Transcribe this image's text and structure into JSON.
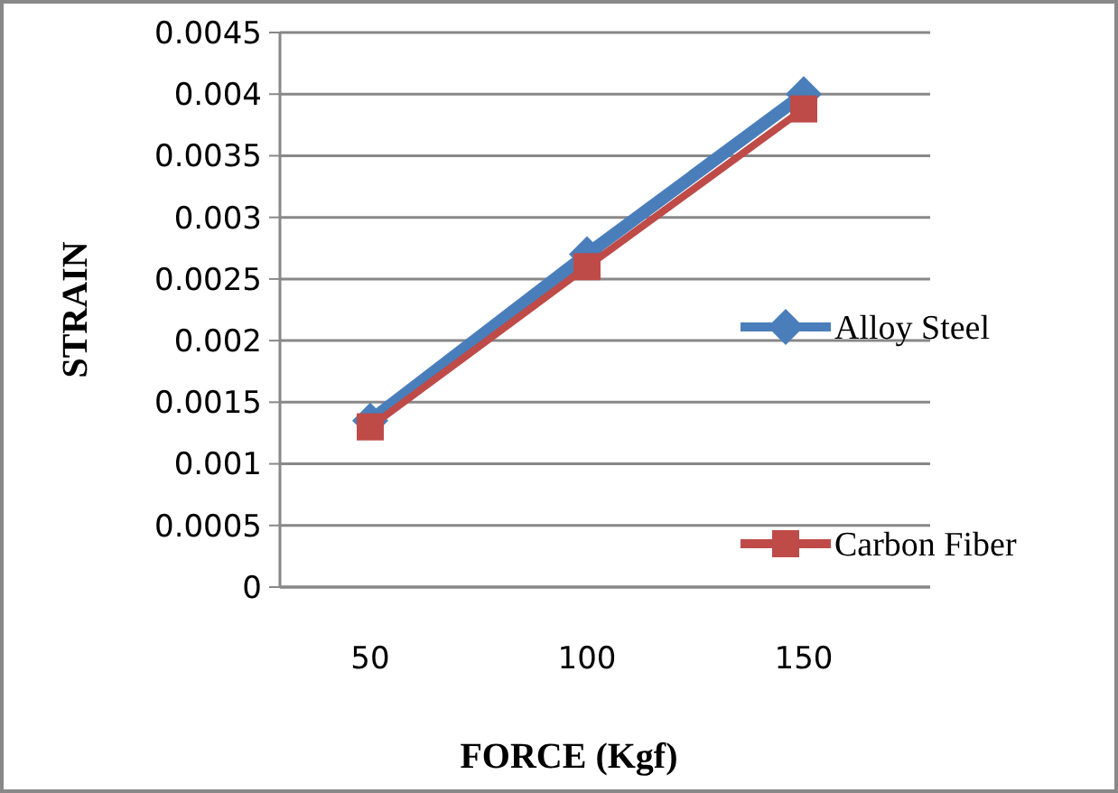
{
  "chart_data": {
    "type": "line",
    "xlabel": "FORCE (Kgf)",
    "ylabel": "STRAIN",
    "categories": [
      "50",
      "100",
      "150"
    ],
    "series": [
      {
        "name": "Alloy Steel",
        "color": "#4a7ebb",
        "marker": "diamond",
        "values": [
          0.00135,
          0.0027,
          0.004
        ]
      },
      {
        "name": "Carbon Fiber",
        "color": "#be4b48",
        "marker": "square",
        "values": [
          0.0013,
          0.0026,
          0.00388
        ]
      }
    ],
    "ylim": [
      0,
      0.0045
    ],
    "yticks": [
      0,
      0.0005,
      0.001,
      0.0015,
      0.002,
      0.0025,
      0.003,
      0.0035,
      0.004,
      0.0045
    ],
    "grid": "y",
    "legend": "right"
  }
}
